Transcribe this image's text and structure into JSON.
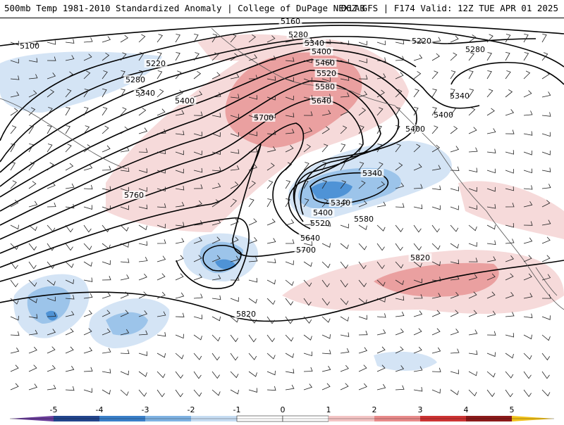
{
  "header": {
    "title_left": "500mb Temp 1981-2010 Standardized Anomaly | College of DuPage NEXLAB",
    "title_right": "06Z GFS | F174 Valid: 12Z TUE APR 01 2025"
  },
  "colorbar": {
    "labels": [
      "-5",
      "-4",
      "-3",
      "-2",
      "-1",
      "0",
      "1",
      "2",
      "3",
      "4",
      "5"
    ],
    "colors": [
      "#6a3d9a",
      "#22458c",
      "#3a7fc8",
      "#7fb2e2",
      "#c6dcf2",
      "#ffffff",
      "#ffffff",
      "#f3c4c4",
      "#e88a8a",
      "#cc3333",
      "#8b1a1a",
      "#f2c21a"
    ]
  },
  "contour_labels": [
    "5100",
    "5160",
    "5220",
    "5220",
    "5280",
    "5280",
    "5280",
    "5340",
    "5340",
    "5340",
    "5400",
    "5400",
    "5400",
    "5460",
    "5520",
    "5580",
    "5640",
    "5700",
    "5760",
    "5820",
    "5820",
    "5700",
    "5640",
    "5580",
    "5520",
    "5400",
    "5340",
    "5400",
    "5340"
  ],
  "colors": {
    "warm_light": "#f6dada",
    "warm_mid": "#eaa0a0",
    "cold_light": "#d4e4f5",
    "cold_mid": "#9cc4ea",
    "cold_deep": "#4f93d6",
    "contour": "#000000",
    "coast": "#555555"
  }
}
